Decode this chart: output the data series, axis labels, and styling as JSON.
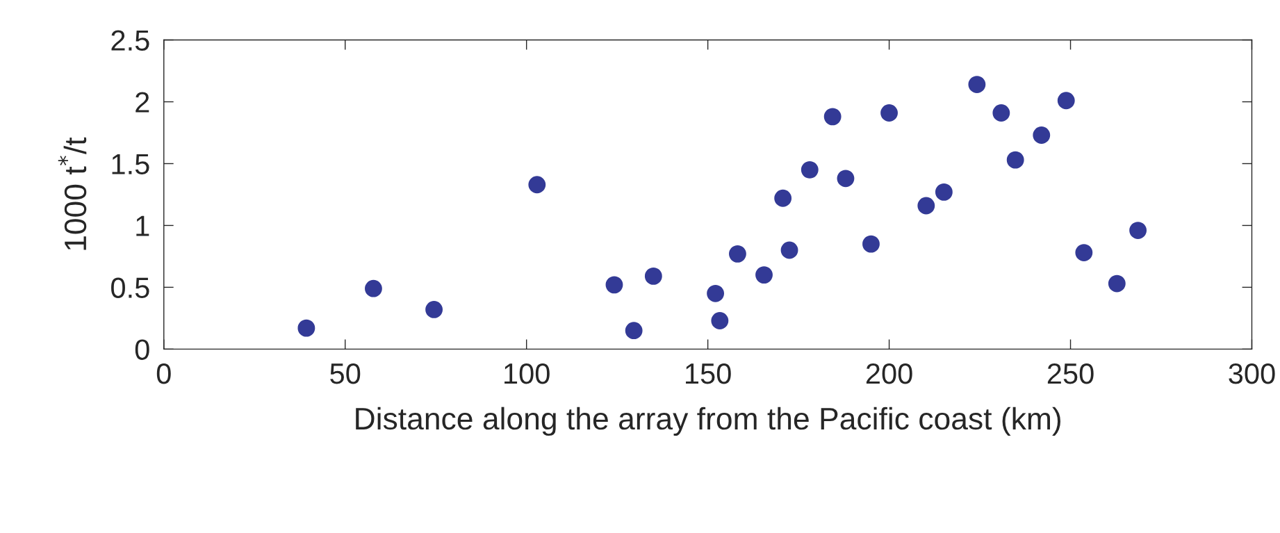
{
  "chart_data": {
    "type": "scatter",
    "xlabel": "Distance along the array from the Pacific coast (km)",
    "ylabel": "1000 t$^{*}$/t",
    "x": [
      39.3,
      57.8,
      74.5,
      102.9,
      124.2,
      129.6,
      135.0,
      152.1,
      153.3,
      158.2,
      165.5,
      170.7,
      172.5,
      178.1,
      184.4,
      188.0,
      195.0,
      200.0,
      210.2,
      215.1,
      224.2,
      230.9,
      234.8,
      242.0,
      248.8,
      253.7,
      262.8,
      268.6
    ],
    "series": [
      {
        "color": "#333a96",
        "values": [
          0.17,
          0.49,
          0.32,
          1.33,
          0.52,
          0.15,
          0.59,
          0.45,
          0.23,
          0.77,
          0.6,
          1.22,
          0.8,
          1.45,
          1.88,
          1.38,
          0.85,
          1.91,
          1.16,
          1.27,
          2.14,
          1.91,
          1.53,
          1.73,
          2.01,
          0.78,
          0.53,
          0.96
        ]
      }
    ],
    "xlim": [
      0,
      300
    ],
    "ylim": [
      0,
      2.5
    ],
    "xticks": [
      0,
      50,
      100,
      150,
      200,
      250,
      300
    ],
    "yticks": [
      0,
      0.5,
      1,
      1.5,
      2,
      2.5
    ],
    "marker": "circle",
    "grid": false,
    "legend": false
  }
}
